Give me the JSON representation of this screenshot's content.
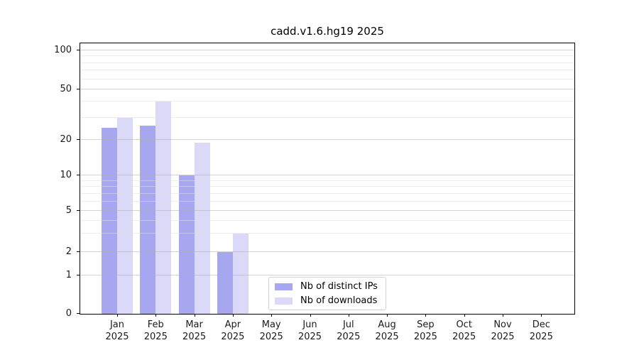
{
  "chart_data": {
    "type": "bar",
    "title": "cadd.v1.6.hg19 2025",
    "categories": [
      "Jan",
      "Feb",
      "Mar",
      "Apr",
      "May",
      "Jun",
      "Jul",
      "Aug",
      "Sep",
      "Oct",
      "Nov",
      "Dec"
    ],
    "x_year_label": "2025",
    "series": [
      {
        "name": "Nb of distinct IPs",
        "color": "#a7a7f0",
        "values": [
          25,
          26,
          10,
          2,
          0,
          0,
          0,
          0,
          0,
          0,
          0,
          0
        ]
      },
      {
        "name": "Nb of downloads",
        "color": "#dadaf8",
        "values": [
          30,
          40,
          19,
          3,
          0,
          0,
          0,
          0,
          0,
          0,
          0,
          0
        ]
      }
    ],
    "y_axis": {
      "scale": "symlog",
      "major_ticks": [
        0,
        1,
        2,
        5,
        10,
        20,
        50,
        100
      ],
      "minor_ticks": [
        3,
        4,
        6,
        7,
        8,
        9,
        30,
        40,
        60,
        70,
        80,
        90
      ],
      "tick_fractions": {
        "0": 0,
        "1": 0.1416,
        "2": 0.2294,
        "5": 0.3809,
        "10": 0.5115,
        "20": 0.6421,
        "50": 0.8294,
        "100": 0.9739
      },
      "ylim": [
        0,
        113
      ]
    },
    "xlabel": "",
    "ylabel": "",
    "grid": true,
    "legend_position": "bottom-center-inside"
  }
}
